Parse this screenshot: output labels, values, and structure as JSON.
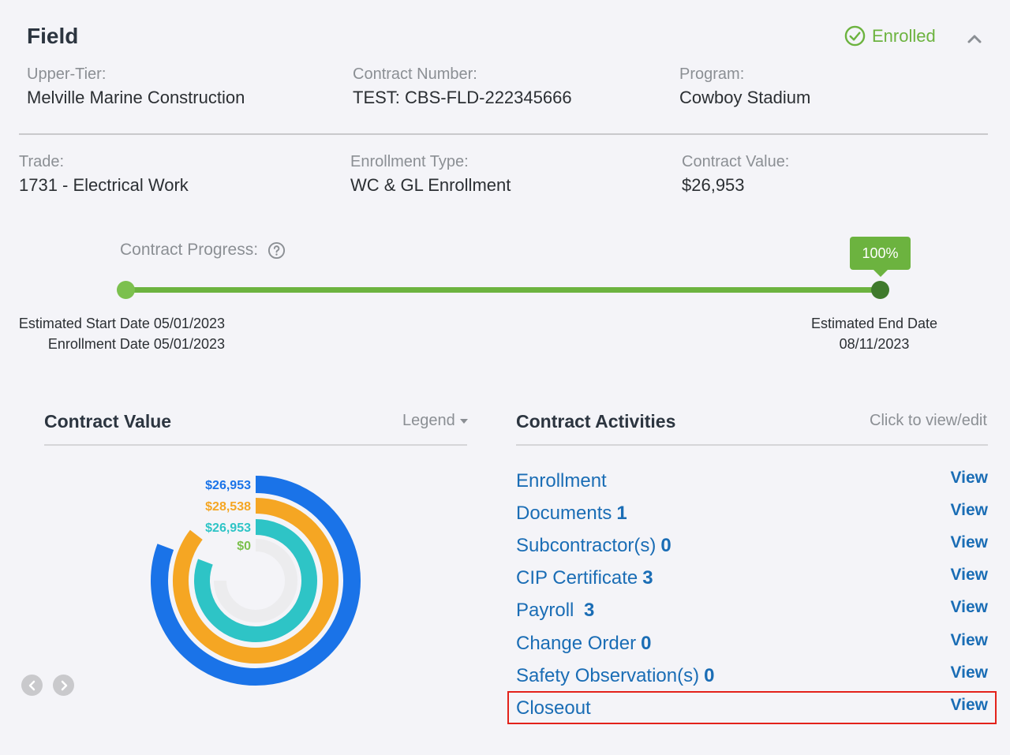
{
  "header": {
    "title": "Field",
    "status": "Enrolled",
    "status_color": "#6cb33f",
    "collapse_icon": "chevron-up-icon"
  },
  "info_row1": [
    {
      "label": "Upper-Tier:",
      "value": "Melville Marine Construction"
    },
    {
      "label": "Contract Number:",
      "value": "TEST: CBS-FLD-222345666"
    },
    {
      "label": "Program:",
      "value": "Cowboy Stadium"
    }
  ],
  "info_row2": [
    {
      "label": "Trade:",
      "value": "1731 - Electrical Work"
    },
    {
      "label": "Enrollment Type:",
      "value": "WC & GL Enrollment"
    },
    {
      "label": "Contract Value:",
      "value": "$26,953"
    }
  ],
  "progress": {
    "label": "Contract Progress:",
    "percent_label": "100%",
    "percent": 100,
    "start_line1": "Estimated Start Date 05/01/2023",
    "start_line2": "Enrollment Date 05/01/2023",
    "end_line1": "Estimated End Date",
    "end_line2": "08/11/2023",
    "track_color": "#6cb33f"
  },
  "contract_value": {
    "title": "Contract Value",
    "legend_label": "Legend",
    "rings": [
      {
        "label": "$26,953",
        "color": "#1a73e8",
        "value": 26953
      },
      {
        "label": "$28,538",
        "color": "#f5a623",
        "value": 28538
      },
      {
        "label": "$26,953",
        "color": "#2ec4c6",
        "value": 26953
      },
      {
        "label": "$0",
        "color": "#7cc04e",
        "value": 0
      }
    ]
  },
  "activities": {
    "title": "Contract Activities",
    "hint": "Click to view/edit",
    "view_label": "View",
    "items": [
      {
        "name": "Enrollment",
        "count": ""
      },
      {
        "name": "Documents",
        "count": "1"
      },
      {
        "name": "Subcontractor(s)",
        "count": "0"
      },
      {
        "name": "CIP Certificate",
        "count": "3"
      },
      {
        "name": "Payroll ",
        "count": "3"
      },
      {
        "name": "Change Order",
        "count": "0"
      },
      {
        "name": "Safety Observation(s)",
        "count": "0"
      },
      {
        "name": "Closeout",
        "count": ""
      }
    ]
  }
}
